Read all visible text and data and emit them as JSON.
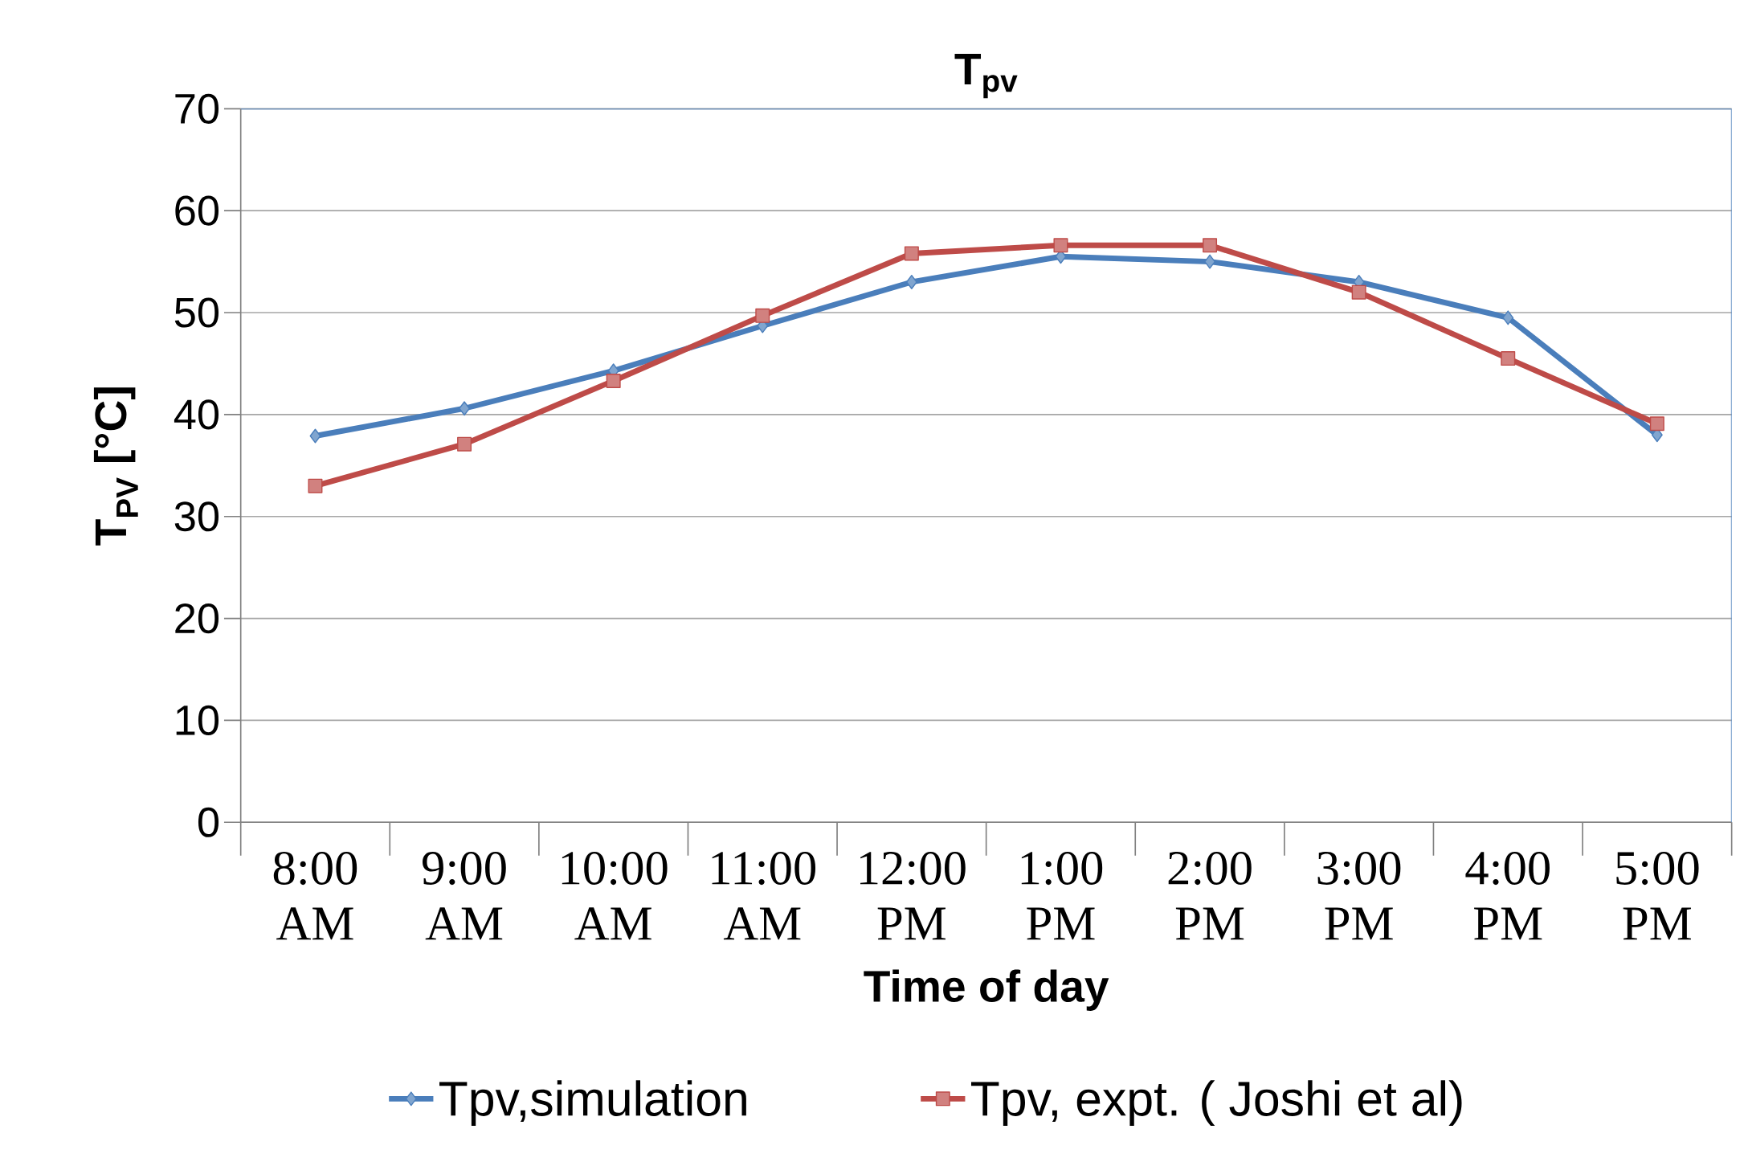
{
  "chart_data": {
    "type": "line",
    "title": "T$_{pv}$",
    "xlabel": "Time of day",
    "ylabel": "T$_{PV}$ [°C]",
    "categories": [
      "8:00 AM",
      "9:00 AM",
      "10:00 AM",
      "11:00 AM",
      "12:00 PM",
      "1:00 PM",
      "2:00 PM",
      "3:00 PM",
      "4:00 PM",
      "5:00 PM"
    ],
    "series": [
      {
        "name": "Tpv,simulation",
        "color": "#4a7ebb",
        "marker": "diamond",
        "values": [
          37.9,
          40.6,
          44.3,
          48.7,
          53.0,
          55.5,
          55.0,
          53.0,
          49.5,
          38.0
        ]
      },
      {
        "name": "Tpv, expt. ( Joshi et al)",
        "color": "#be4b48",
        "marker": "square",
        "values": [
          33.0,
          37.1,
          43.3,
          49.7,
          55.8,
          56.6,
          56.6,
          52.0,
          45.5,
          39.1
        ]
      }
    ],
    "ylim": [
      0,
      70
    ],
    "yticks": [
      0,
      10,
      20,
      30,
      40,
      50,
      60,
      70
    ],
    "grid": "y",
    "legend": "bottom",
    "line_style": "solid"
  }
}
